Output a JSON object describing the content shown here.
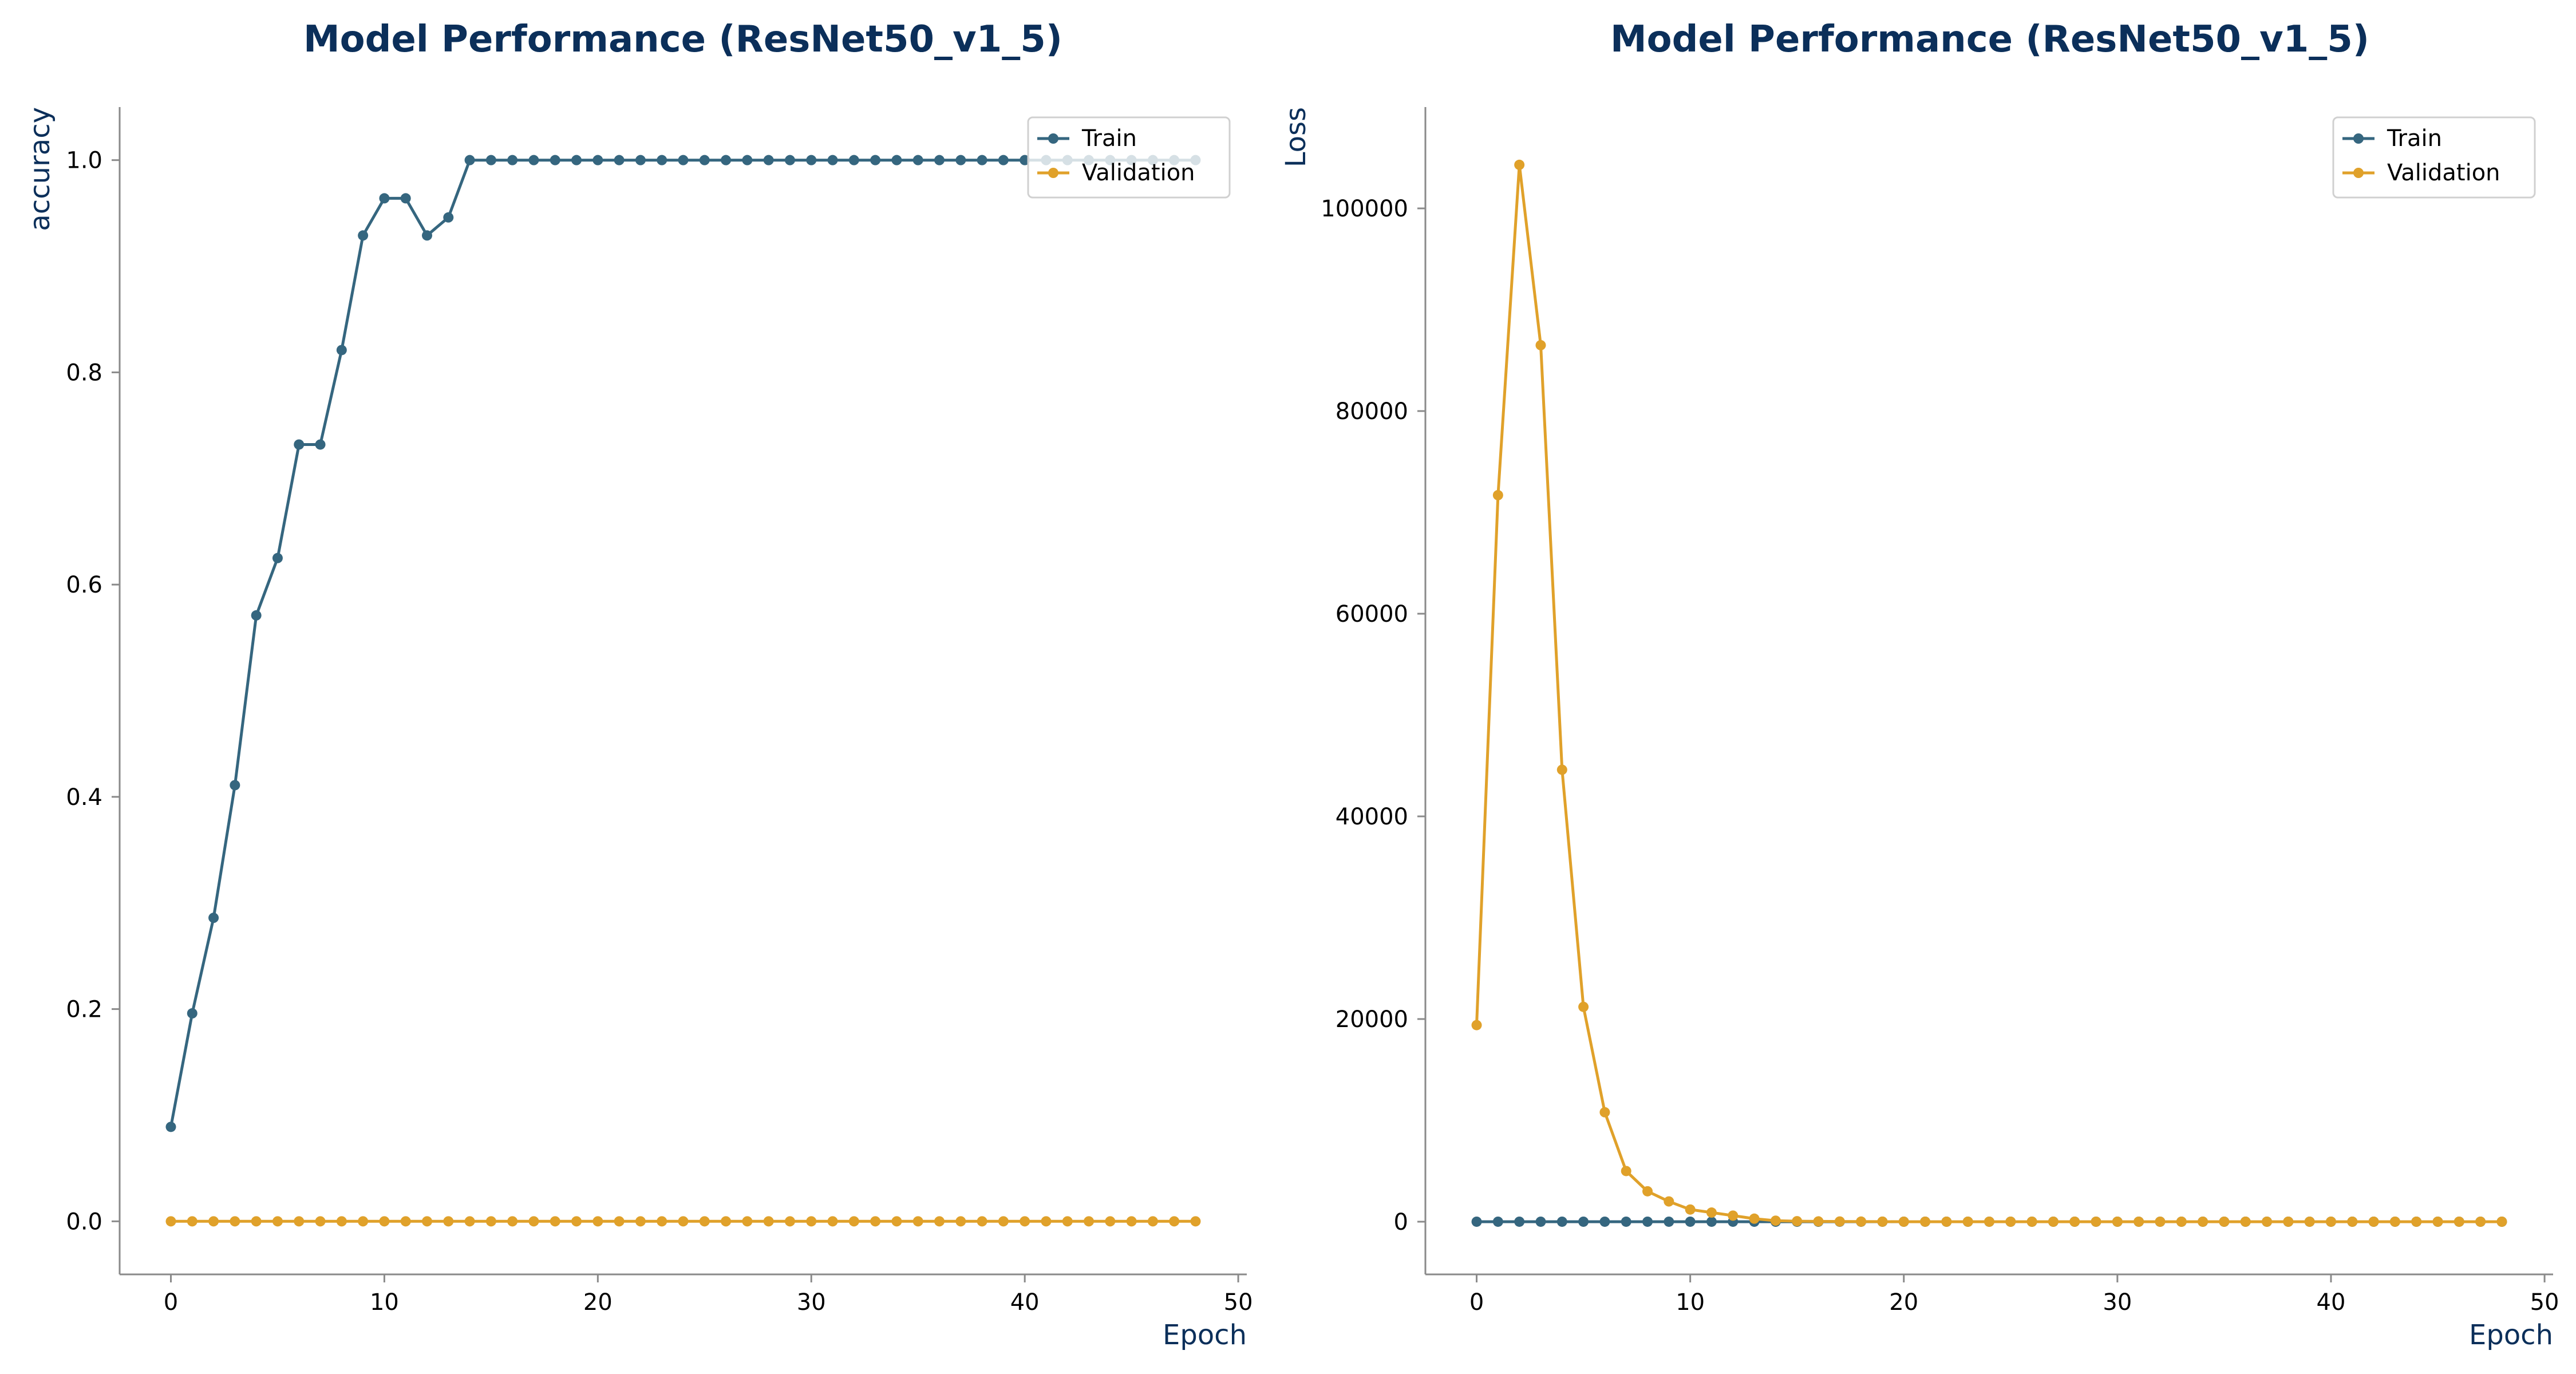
{
  "chart_data": [
    {
      "type": "line",
      "title": "Model Performance (ResNet50_v1_5)",
      "xlabel": "Epoch",
      "ylabel": "accuracy",
      "xlim": [
        -2.4,
        50.4
      ],
      "ylim": [
        -0.05,
        1.05
      ],
      "xticks": [
        "0",
        "10",
        "20",
        "30",
        "40",
        "50"
      ],
      "xtick_values": [
        0,
        10,
        20,
        30,
        40,
        50
      ],
      "yticks": [
        "0.0",
        "0.2",
        "0.4",
        "0.6",
        "0.8",
        "1.0"
      ],
      "ytick_values": [
        0,
        0.2,
        0.4,
        0.6,
        0.8,
        1.0
      ],
      "legend_position": "top-right",
      "grid": false,
      "series": [
        {
          "name": "Train",
          "color": "#35667f",
          "x": [
            0,
            1,
            2,
            3,
            4,
            5,
            6,
            7,
            8,
            9,
            10,
            11,
            12,
            13,
            14,
            15,
            16,
            17,
            18,
            19,
            20,
            21,
            22,
            23,
            24,
            25,
            26,
            27,
            28,
            29,
            30,
            31,
            32,
            33,
            34,
            35,
            36,
            37,
            38,
            39,
            40,
            41,
            42,
            43,
            44,
            45,
            46,
            47,
            48
          ],
          "values": [
            0.089,
            0.196,
            0.286,
            0.411,
            0.571,
            0.625,
            0.732,
            0.732,
            0.821,
            0.929,
            0.964,
            0.964,
            0.929,
            0.946,
            1.0,
            1.0,
            1.0,
            1.0,
            1.0,
            1.0,
            1.0,
            1.0,
            1.0,
            1.0,
            1.0,
            1.0,
            1.0,
            1.0,
            1.0,
            1.0,
            1.0,
            1.0,
            1.0,
            1.0,
            1.0,
            1.0,
            1.0,
            1.0,
            1.0,
            1.0,
            1.0,
            1.0,
            1.0,
            1.0,
            1.0,
            1.0,
            1.0,
            1.0,
            1.0
          ]
        },
        {
          "name": "Validation",
          "color": "#e0a12a",
          "x": [
            0,
            1,
            2,
            3,
            4,
            5,
            6,
            7,
            8,
            9,
            10,
            11,
            12,
            13,
            14,
            15,
            16,
            17,
            18,
            19,
            20,
            21,
            22,
            23,
            24,
            25,
            26,
            27,
            28,
            29,
            30,
            31,
            32,
            33,
            34,
            35,
            36,
            37,
            38,
            39,
            40,
            41,
            42,
            43,
            44,
            45,
            46,
            47,
            48
          ],
          "values": [
            0,
            0,
            0,
            0,
            0,
            0,
            0,
            0,
            0,
            0,
            0,
            0,
            0,
            0,
            0,
            0,
            0,
            0,
            0,
            0,
            0,
            0,
            0,
            0,
            0,
            0,
            0,
            0,
            0,
            0,
            0,
            0,
            0,
            0,
            0,
            0,
            0,
            0,
            0,
            0,
            0,
            0,
            0,
            0,
            0,
            0,
            0,
            0,
            0
          ]
        }
      ]
    },
    {
      "type": "line",
      "title": "Model Performance (ResNet50_v1_5)",
      "xlabel": "Epoch",
      "ylabel": "Loss",
      "xlim": [
        -2.4,
        50.4
      ],
      "ylim": [
        -5200,
        110000
      ],
      "xticks": [
        "0",
        "10",
        "20",
        "30",
        "40",
        "50"
      ],
      "xtick_values": [
        0,
        10,
        20,
        30,
        40,
        50
      ],
      "yticks": [
        "0",
        "20000",
        "40000",
        "60000",
        "80000",
        "100000"
      ],
      "ytick_values": [
        0,
        20000,
        40000,
        60000,
        80000,
        100000
      ],
      "legend_position": "top-right",
      "grid": false,
      "series": [
        {
          "name": "Train",
          "color": "#35667f",
          "x": [
            0,
            1,
            2,
            3,
            4,
            5,
            6,
            7,
            8,
            9,
            10,
            11,
            12,
            13,
            14,
            15,
            16,
            17,
            18,
            19,
            20,
            21,
            22,
            23,
            24,
            25,
            26,
            27,
            28,
            29,
            30,
            31,
            32,
            33,
            34,
            35,
            36,
            37,
            38,
            39,
            40,
            41,
            42,
            43,
            44,
            45,
            46,
            47,
            48
          ],
          "values": [
            0,
            0,
            0,
            0,
            0,
            0,
            0,
            0,
            0,
            0,
            0,
            0,
            0,
            0,
            0,
            0,
            0,
            0,
            0,
            0,
            0,
            0,
            0,
            0,
            0,
            0,
            0,
            0,
            0,
            0,
            0,
            0,
            0,
            0,
            0,
            0,
            0,
            0,
            0,
            0,
            0,
            0,
            0,
            0,
            0,
            0,
            0,
            0,
            0
          ]
        },
        {
          "name": "Validation",
          "color": "#e0a12a",
          "x": [
            0,
            1,
            2,
            3,
            4,
            5,
            6,
            7,
            8,
            9,
            10,
            11,
            12,
            13,
            14,
            15,
            16,
            17,
            18,
            19,
            20,
            21,
            22,
            23,
            24,
            25,
            26,
            27,
            28,
            29,
            30,
            31,
            32,
            33,
            34,
            35,
            36,
            37,
            38,
            39,
            40,
            41,
            42,
            43,
            44,
            45,
            46,
            47,
            48
          ],
          "values": [
            19400,
            71700,
            104300,
            86500,
            44600,
            21200,
            10800,
            5000,
            3000,
            2000,
            1200,
            900,
            600,
            300,
            100,
            50,
            30,
            20,
            10,
            5,
            0,
            0,
            0,
            0,
            0,
            0,
            0,
            0,
            0,
            0,
            0,
            0,
            0,
            0,
            0,
            0,
            0,
            0,
            0,
            0,
            0,
            0,
            0,
            0,
            0,
            0,
            0,
            0,
            0
          ]
        }
      ]
    }
  ]
}
